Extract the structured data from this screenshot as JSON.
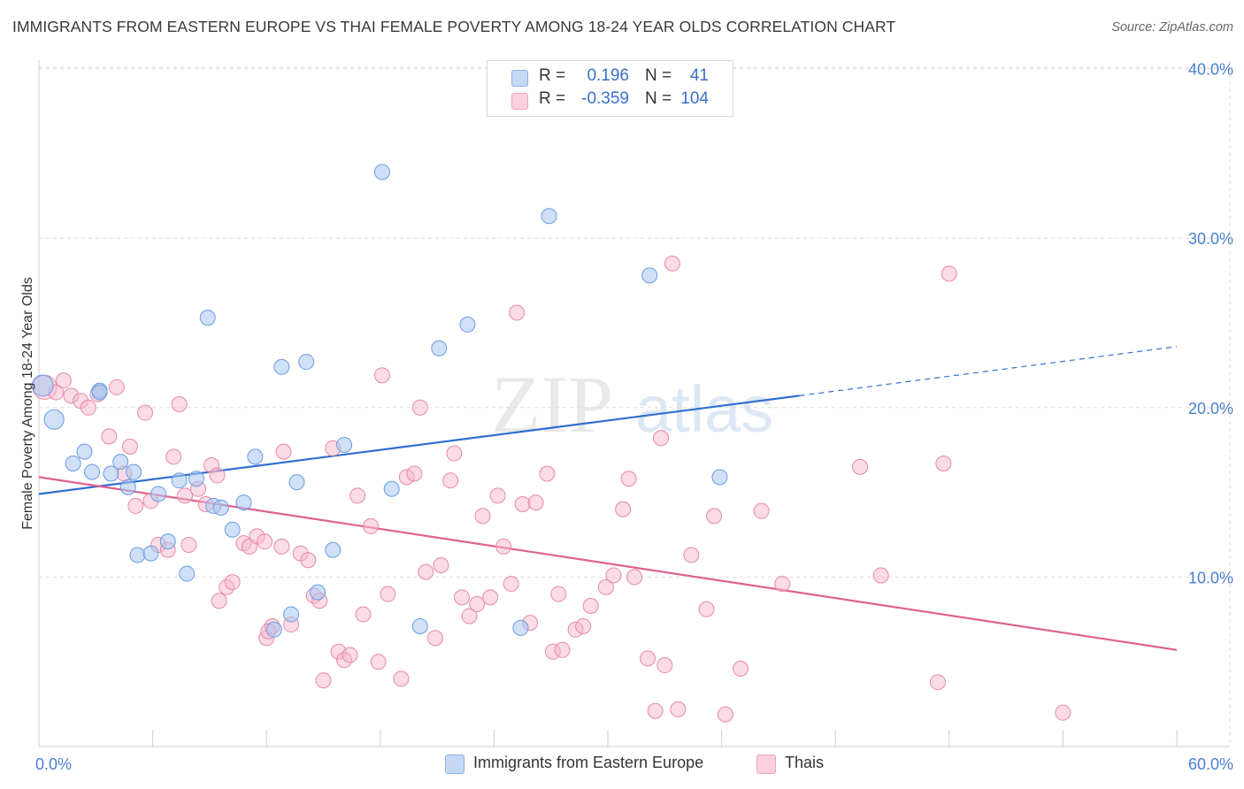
{
  "header": {
    "title": "IMMIGRANTS FROM EASTERN EUROPE VS THAI FEMALE POVERTY AMONG 18-24 YEAR OLDS CORRELATION CHART",
    "source": "Source: ZipAtlas.com"
  },
  "watermark": {
    "zip": "ZIP",
    "atlas": "atlas"
  },
  "legend_top": {
    "rows": [
      {
        "r_label": "R =",
        "r_value": "0.196",
        "n_label": "N =",
        "n_value": "41",
        "color": "#a9c7f0"
      },
      {
        "r_label": "R =",
        "r_value": "-0.359",
        "n_label": "N =",
        "n_value": "104",
        "color": "#f7b8cc"
      }
    ]
  },
  "legend_bottom": {
    "items": [
      {
        "label": "Immigrants from Eastern Europe",
        "color": "#a9c7f0"
      },
      {
        "label": "Thais",
        "color": "#f7b8cc"
      }
    ]
  },
  "colors": {
    "blue_fill": "#a9c7f0",
    "blue_stroke": "#6a9de0",
    "blue_line": "#2f6fd1",
    "pink_fill": "#f7b8cc",
    "pink_stroke": "#e48aa8",
    "pink_line": "#e0608e",
    "grid": "#dcdcdc",
    "tick_text": "#4a7fcf"
  },
  "chart_data": {
    "type": "scatter",
    "title": "IMMIGRANTS FROM EASTERN EUROPE VS THAI FEMALE POVERTY AMONG 18-24 YEAR OLDS CORRELATION CHART",
    "xlabel": "",
    "ylabel": "Female Poverty Among 18-24 Year Olds",
    "xlim": [
      0,
      60
    ],
    "ylim": [
      0,
      41
    ],
    "x_tick_labels": [
      "0.0%",
      "60.0%"
    ],
    "y_ticks": [
      10,
      20,
      30,
      40
    ],
    "y_tick_labels": [
      "10.0%",
      "20.0%",
      "30.0%",
      "40.0%"
    ],
    "grid": "horizontal dashed",
    "legend_position": "top-center",
    "series": [
      {
        "name": "Immigrants from Eastern Europe",
        "r": 0.196,
        "n": 41,
        "points": [
          [
            0.2,
            21.3,
            1.4
          ],
          [
            0.8,
            19.3,
            1.3
          ],
          [
            1.8,
            16.7,
            1
          ],
          [
            2.4,
            17.4,
            1
          ],
          [
            2.8,
            16.2,
            1
          ],
          [
            3.2,
            21.0,
            1
          ],
          [
            3.8,
            16.1,
            1
          ],
          [
            4.3,
            16.8,
            1
          ],
          [
            4.7,
            15.3,
            1
          ],
          [
            5.2,
            11.3,
            1
          ],
          [
            5.9,
            11.4,
            1
          ],
          [
            6.3,
            14.9,
            1
          ],
          [
            6.8,
            12.1,
            1
          ],
          [
            7.4,
            15.7,
            1
          ],
          [
            7.8,
            10.2,
            1
          ],
          [
            8.3,
            15.8,
            1
          ],
          [
            8.9,
            25.3,
            1
          ],
          [
            9.2,
            14.2,
            1
          ],
          [
            9.6,
            14.1,
            1
          ],
          [
            10.2,
            12.8,
            1
          ],
          [
            10.8,
            14.4,
            1
          ],
          [
            11.4,
            17.1,
            1
          ],
          [
            12.4,
            6.9,
            1
          ],
          [
            12.8,
            22.4,
            1
          ],
          [
            13.3,
            7.8,
            1
          ],
          [
            13.6,
            15.6,
            1
          ],
          [
            14.1,
            22.7,
            1
          ],
          [
            14.7,
            9.1,
            1
          ],
          [
            15.5,
            11.6,
            1
          ],
          [
            16.1,
            17.8,
            1
          ],
          [
            18.6,
            15.2,
            1
          ],
          [
            18.1,
            33.9,
            1
          ],
          [
            20.1,
            7.1,
            1
          ],
          [
            21.1,
            23.5,
            1
          ],
          [
            22.6,
            24.9,
            1
          ],
          [
            25.4,
            7.0,
            1
          ],
          [
            26.9,
            31.3,
            1
          ],
          [
            32.2,
            27.8,
            1
          ],
          [
            35.9,
            15.9,
            1
          ],
          [
            5.0,
            16.2,
            1
          ],
          [
            3.2,
            20.9,
            1
          ]
        ]
      },
      {
        "name": "Thais",
        "r": -0.359,
        "n": 104,
        "points": [
          [
            0.3,
            21.2,
            1.6
          ],
          [
            0.9,
            20.9,
            1
          ],
          [
            1.3,
            21.6,
            1
          ],
          [
            1.7,
            20.7,
            1
          ],
          [
            2.2,
            20.4,
            1
          ],
          [
            2.6,
            20.0,
            1
          ],
          [
            3.1,
            20.8,
            1
          ],
          [
            3.7,
            18.3,
            1
          ],
          [
            4.1,
            21.2,
            1
          ],
          [
            4.5,
            16.1,
            1
          ],
          [
            4.8,
            17.7,
            1
          ],
          [
            5.1,
            14.2,
            1
          ],
          [
            5.6,
            19.7,
            1
          ],
          [
            5.9,
            14.5,
            1
          ],
          [
            6.3,
            11.9,
            1
          ],
          [
            6.8,
            11.6,
            1
          ],
          [
            7.1,
            17.1,
            1
          ],
          [
            7.4,
            20.2,
            1
          ],
          [
            7.7,
            14.8,
            1
          ],
          [
            7.9,
            11.9,
            1
          ],
          [
            8.4,
            15.2,
            1
          ],
          [
            8.8,
            14.3,
            1
          ],
          [
            9.1,
            16.6,
            1
          ],
          [
            9.4,
            16.0,
            1
          ],
          [
            9.5,
            8.6,
            1
          ],
          [
            9.9,
            9.4,
            1
          ],
          [
            10.2,
            9.7,
            1
          ],
          [
            10.8,
            12.0,
            1
          ],
          [
            11.1,
            11.8,
            1
          ],
          [
            11.5,
            12.4,
            1
          ],
          [
            11.9,
            12.1,
            1
          ],
          [
            12.0,
            6.4,
            1
          ],
          [
            12.3,
            7.1,
            1
          ],
          [
            12.8,
            11.8,
            1
          ],
          [
            12.9,
            17.4,
            1
          ],
          [
            13.3,
            7.2,
            1
          ],
          [
            13.8,
            11.4,
            1
          ],
          [
            14.2,
            11.0,
            1
          ],
          [
            14.5,
            8.9,
            1
          ],
          [
            14.8,
            8.6,
            1
          ],
          [
            15.0,
            3.9,
            1
          ],
          [
            15.5,
            17.6,
            1
          ],
          [
            15.8,
            5.6,
            1
          ],
          [
            16.1,
            5.1,
            1
          ],
          [
            16.4,
            5.4,
            1
          ],
          [
            16.8,
            14.8,
            1
          ],
          [
            17.1,
            7.8,
            1
          ],
          [
            17.5,
            13.0,
            1
          ],
          [
            17.9,
            5.0,
            1
          ],
          [
            18.1,
            21.9,
            1
          ],
          [
            18.4,
            9.0,
            1
          ],
          [
            19.1,
            4.0,
            1
          ],
          [
            19.4,
            15.9,
            1
          ],
          [
            19.8,
            16.1,
            1
          ],
          [
            20.1,
            20.0,
            1
          ],
          [
            20.4,
            10.3,
            1
          ],
          [
            20.9,
            6.4,
            1
          ],
          [
            21.2,
            10.7,
            1
          ],
          [
            21.7,
            15.7,
            1
          ],
          [
            21.9,
            17.3,
            1
          ],
          [
            22.3,
            8.8,
            1
          ],
          [
            22.7,
            7.7,
            1
          ],
          [
            23.1,
            8.4,
            1
          ],
          [
            23.4,
            13.6,
            1
          ],
          [
            23.8,
            8.8,
            1
          ],
          [
            24.2,
            14.8,
            1
          ],
          [
            24.5,
            11.8,
            1
          ],
          [
            24.9,
            9.6,
            1
          ],
          [
            25.2,
            25.6,
            1
          ],
          [
            25.5,
            14.3,
            1
          ],
          [
            25.9,
            7.3,
            1
          ],
          [
            26.8,
            16.1,
            1
          ],
          [
            27.1,
            5.6,
            1
          ],
          [
            27.4,
            9.0,
            1
          ],
          [
            27.6,
            5.7,
            1
          ],
          [
            28.3,
            6.9,
            1
          ],
          [
            28.7,
            7.1,
            1
          ],
          [
            29.1,
            8.3,
            1
          ],
          [
            29.9,
            9.4,
            1
          ],
          [
            30.3,
            10.1,
            1
          ],
          [
            30.8,
            14.0,
            1
          ],
          [
            31.1,
            15.8,
            1
          ],
          [
            31.4,
            10.0,
            1
          ],
          [
            32.1,
            5.2,
            1
          ],
          [
            32.5,
            2.1,
            1
          ],
          [
            32.8,
            18.2,
            1
          ],
          [
            33.4,
            28.5,
            1
          ],
          [
            33.7,
            2.2,
            1
          ],
          [
            34.4,
            11.3,
            1
          ],
          [
            35.2,
            8.1,
            1
          ],
          [
            35.6,
            13.6,
            1
          ],
          [
            36.2,
            1.9,
            1
          ],
          [
            37.0,
            4.6,
            1
          ],
          [
            38.1,
            13.9,
            1
          ],
          [
            39.2,
            9.6,
            1
          ],
          [
            43.3,
            16.5,
            1
          ],
          [
            44.4,
            10.1,
            1
          ],
          [
            47.4,
            3.8,
            1
          ],
          [
            47.7,
            16.7,
            1
          ],
          [
            48.0,
            27.9,
            1
          ],
          [
            54.0,
            2.0,
            1
          ],
          [
            33.0,
            4.8,
            1
          ],
          [
            26.2,
            14.4,
            1
          ],
          [
            12.1,
            6.8,
            1
          ]
        ]
      }
    ],
    "trendlines": [
      {
        "name": "Immigrants from Eastern Europe",
        "x0": 0,
        "y0": 14.9,
        "x1": 40.1,
        "y1": 20.7,
        "dashed_to_x": 60,
        "dashed_to_y": 23.6
      },
      {
        "name": "Thais",
        "x0": 0,
        "y0": 15.9,
        "x1": 60,
        "y1": 5.7
      }
    ]
  }
}
